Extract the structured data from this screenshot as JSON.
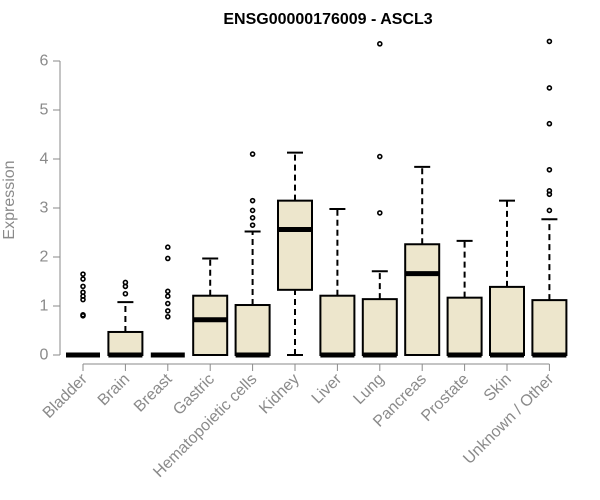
{
  "chart_data": {
    "type": "boxplot",
    "title": "ENSG00000176009 - ASCL3",
    "ylabel": "Expression",
    "xlabel": "",
    "ylim": [
      0,
      6.6
    ],
    "yticks": [
      0,
      1,
      2,
      3,
      4,
      5,
      6
    ],
    "grid": false,
    "colors": {
      "box_fill": "#ede6cc",
      "box_stroke": "#000000",
      "axis_text": "#8a8a8a"
    },
    "categories": [
      "Bladder",
      "Brain",
      "Breast",
      "Gastric",
      "Hematopoietic cells",
      "Kidney",
      "Liver",
      "Lung",
      "Pancreas",
      "Prostate",
      "Skin",
      "Unknown / Other"
    ],
    "boxes": [
      {
        "q1": 0,
        "median": 0,
        "q3": 0,
        "wlo": 0,
        "whi": 0,
        "outliers": [
          0.8,
          0.82,
          1.13,
          1.2,
          1.28,
          1.4,
          1.55,
          1.65
        ]
      },
      {
        "q1": 0,
        "median": 0,
        "q3": 0.47,
        "wlo": 0,
        "whi": 1.08,
        "outliers": [
          1.25,
          1.4,
          1.48
        ]
      },
      {
        "q1": 0,
        "median": 0,
        "q3": 0,
        "wlo": 0,
        "whi": 0,
        "outliers": [
          0.78,
          0.9,
          1.05,
          1.2,
          1.3,
          1.97,
          2.2
        ]
      },
      {
        "q1": 0,
        "median": 0.72,
        "q3": 1.21,
        "wlo": 0,
        "whi": 1.97,
        "outliers": []
      },
      {
        "q1": 0,
        "median": 0,
        "q3": 1.02,
        "wlo": 0,
        "whi": 2.52,
        "outliers": [
          2.65,
          2.8,
          2.95,
          3.15,
          4.1
        ]
      },
      {
        "q1": 1.33,
        "median": 2.56,
        "q3": 3.15,
        "wlo": 0,
        "whi": 4.13,
        "outliers": []
      },
      {
        "q1": 0,
        "median": 0,
        "q3": 1.21,
        "wlo": 0,
        "whi": 2.98,
        "outliers": []
      },
      {
        "q1": 0,
        "median": 0,
        "q3": 1.14,
        "wlo": 0,
        "whi": 1.71,
        "outliers": [
          2.9,
          4.05,
          6.35
        ]
      },
      {
        "q1": 0,
        "median": 1.66,
        "q3": 2.26,
        "wlo": 0,
        "whi": 3.84,
        "outliers": []
      },
      {
        "q1": 0,
        "median": 0,
        "q3": 1.17,
        "wlo": 0,
        "whi": 2.33,
        "outliers": []
      },
      {
        "q1": 0,
        "median": 0,
        "q3": 1.39,
        "wlo": 0,
        "whi": 3.15,
        "outliers": []
      },
      {
        "q1": 0,
        "median": 0,
        "q3": 1.12,
        "wlo": 0,
        "whi": 2.77,
        "outliers": [
          2.95,
          3.28,
          3.35,
          3.78,
          4.72,
          5.45,
          6.4
        ]
      }
    ]
  }
}
